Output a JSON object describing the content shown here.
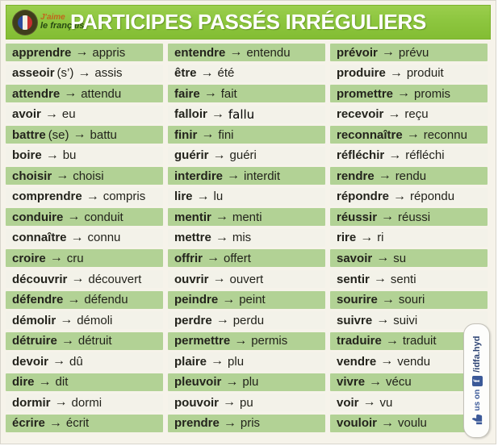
{
  "header": {
    "title": "PARTICIPES PASSÉS IRRÉGULIERS",
    "logo": {
      "line1": "J'aime",
      "line2": "le français"
    }
  },
  "table": {
    "arrow": "→",
    "columns": [
      {
        "rows": [
          {
            "verb": "apprendre",
            "participle": "appris"
          },
          {
            "verb": "asseoir",
            "note": "(s’)",
            "participle": "assis"
          },
          {
            "verb": "attendre",
            "participle": "attendu"
          },
          {
            "verb": "avoir",
            "participle": "eu"
          },
          {
            "verb": "battre",
            "note": "(se)",
            "participle": "battu"
          },
          {
            "verb": "boire",
            "participle": "bu"
          },
          {
            "verb": "choisir",
            "participle": "choisi"
          },
          {
            "verb": "comprendre",
            "participle": "compris"
          },
          {
            "verb": "conduire",
            "participle": "conduit"
          },
          {
            "verb": "connaître",
            "participle": "connu"
          },
          {
            "verb": "croire",
            "participle": "cru"
          },
          {
            "verb": "découvrir",
            "participle": "découvert"
          },
          {
            "verb": "défendre",
            "participle": "défendu"
          },
          {
            "verb": "démolir",
            "participle": "démoli"
          },
          {
            "verb": "détruire",
            "participle": "détruit"
          },
          {
            "verb": "devoir",
            "participle": "dû"
          },
          {
            "verb": "dire",
            "participle": "dit"
          },
          {
            "verb": "dormir",
            "participle": "dormi"
          },
          {
            "verb": "écrire",
            "participle": "écrit"
          }
        ]
      },
      {
        "rows": [
          {
            "verb": "entendre",
            "participle": "entendu"
          },
          {
            "verb": "être",
            "participle": "été"
          },
          {
            "verb": "faire",
            "participle": "fait"
          },
          {
            "verb": "falloir",
            "participle": "fallu",
            "plain": true
          },
          {
            "verb": "finir",
            "participle": "fini"
          },
          {
            "verb": "guérir",
            "participle": "guéri"
          },
          {
            "verb": "interdire",
            "participle": "interdit"
          },
          {
            "verb": "lire",
            "participle": "lu"
          },
          {
            "verb": "mentir",
            "participle": "menti"
          },
          {
            "verb": "mettre",
            "participle": "mis"
          },
          {
            "verb": "offrir",
            "participle": "offert"
          },
          {
            "verb": "ouvrir",
            "participle": "ouvert"
          },
          {
            "verb": "peindre",
            "participle": "peint"
          },
          {
            "verb": "perdre",
            "participle": "perdu"
          },
          {
            "verb": "permettre",
            "participle": "permis"
          },
          {
            "verb": "plaire",
            "participle": "plu"
          },
          {
            "verb": "pleuvoir",
            "participle": "plu"
          },
          {
            "verb": "pouvoir",
            "participle": "pu"
          },
          {
            "verb": "prendre",
            "participle": "pris"
          }
        ]
      },
      {
        "rows": [
          {
            "verb": "prévoir",
            "participle": "prévu"
          },
          {
            "verb": "produire",
            "participle": "produit"
          },
          {
            "verb": "promettre",
            "participle": "promis"
          },
          {
            "verb": "recevoir",
            "participle": "reçu"
          },
          {
            "verb": "reconnaître",
            "participle": "reconnu"
          },
          {
            "verb": "réfléchir",
            "participle": "réfléchi"
          },
          {
            "verb": "rendre",
            "participle": "rendu"
          },
          {
            "verb": "répondre",
            "participle": "répondu"
          },
          {
            "verb": "réussir",
            "participle": "réussi"
          },
          {
            "verb": "rire",
            "participle": "ri"
          },
          {
            "verb": "savoir",
            "participle": "su"
          },
          {
            "verb": "sentir",
            "participle": "senti"
          },
          {
            "verb": "sourire",
            "participle": "souri"
          },
          {
            "verb": "suivre",
            "participle": "suivi"
          },
          {
            "verb": "traduire",
            "participle": "traduit"
          },
          {
            "verb": "vendre",
            "participle": "vendu"
          },
          {
            "verb": "vivre",
            "participle": "vécu"
          },
          {
            "verb": "voir",
            "participle": "vu"
          },
          {
            "verb": "vouloir",
            "participle": "voulu"
          }
        ]
      }
    ]
  },
  "badge": {
    "thumb_icon": "thumbs-up-icon",
    "text_before": "us on",
    "facebook_letter": "f",
    "handle": "/idfa.hyd"
  },
  "colors": {
    "header_green": "#8dc63f",
    "row_green": "#b2d295",
    "row_cream": "#f3f2e9",
    "text": "#23231c",
    "facebook_blue": "#3b5998"
  }
}
